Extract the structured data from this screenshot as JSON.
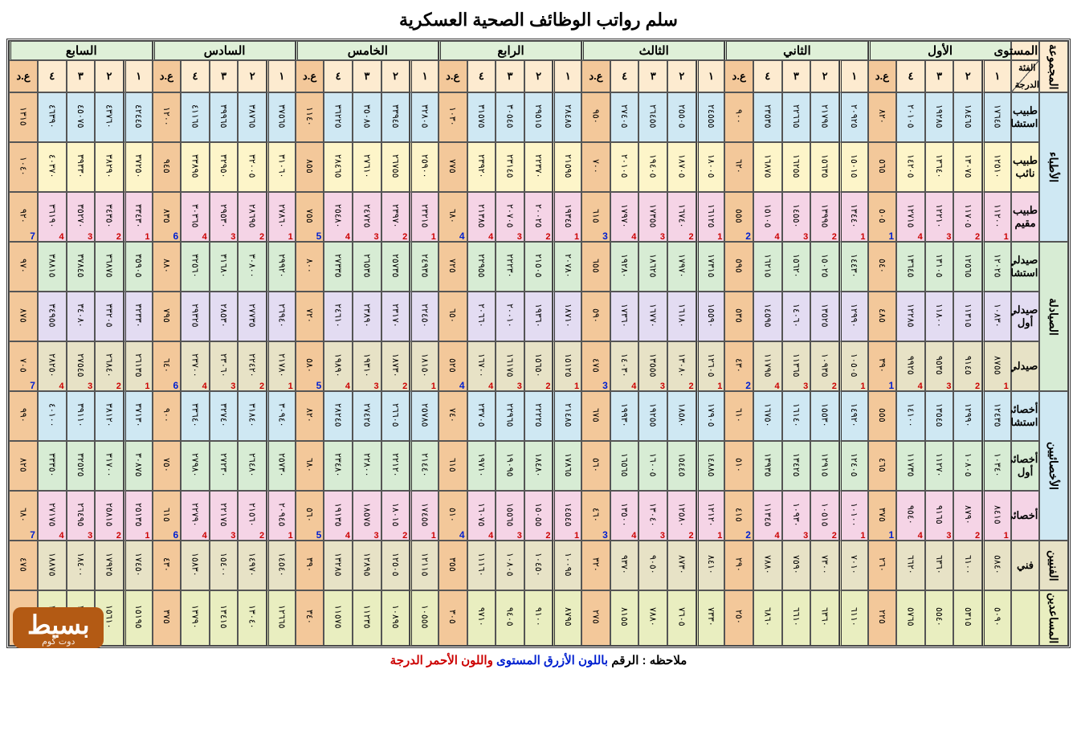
{
  "title": "سلم رواتب الوظائف الصحية العسكرية",
  "footer": {
    "prefix": "ملاحظه : الرقم ",
    "blue": "باللون الأزرق المستوى",
    "mid": " ",
    "red": "واللون الأحمر الدرجة"
  },
  "logo": {
    "big": "بسيط",
    "small": "دوت كوم"
  },
  "header": {
    "group_col": "المجموعة",
    "level_col": "المستوى",
    "diag_top": "الفئة",
    "diag_bot": "الدرجة",
    "levels": [
      "الأول",
      "الثاني",
      "الثالث",
      "الرابع",
      "الخامس",
      "السادس",
      "السابع"
    ],
    "degrees": [
      "١",
      "٢",
      "٣",
      "٤",
      "ع.د"
    ]
  },
  "colors": {
    "hdr_tan": "#fdebd0",
    "hdr_green": "#dff0d8",
    "lightblue": "#cfe8f3",
    "yellow": "#fdf5c9",
    "pink": "#f5d4e6",
    "green": "#d7ecd4",
    "lilac": "#e3dcf2",
    "khaki": "#e7e2c6",
    "olive": "#e9eec0",
    "orange_ad": "#f3c89a"
  },
  "groups": [
    {
      "name": "الأطباء",
      "bg": "lightblue",
      "rows": [
        {
          "label": "طبيب استشاري",
          "bg": "lightblue"
        },
        {
          "label": "طبيب نائب",
          "bg": "yellow"
        },
        {
          "label": "طبيب مقيم",
          "bg": "pink",
          "markers": true
        }
      ]
    },
    {
      "name": "الصيادلة",
      "bg": "green",
      "rows": [
        {
          "label": "صيدلي استشاري",
          "bg": "green"
        },
        {
          "label": "صيدلي أول",
          "bg": "lilac"
        },
        {
          "label": "صيدلي",
          "bg": "khaki",
          "markers": true
        }
      ]
    },
    {
      "name": "الأخصائيين",
      "bg": "lightblue",
      "rows": [
        {
          "label": "أخصائي استشاري",
          "bg": "lightblue"
        },
        {
          "label": "أخصائي أول",
          "bg": "green"
        },
        {
          "label": "أخصائي",
          "bg": "pink",
          "markers": true
        }
      ]
    },
    {
      "name": "الفنيين",
      "bg": "khaki",
      "rows": [
        {
          "label": "فني",
          "bg": "khaki"
        }
      ]
    },
    {
      "name": "المساعدين",
      "bg": "olive",
      "rows": [
        {
          "label": "",
          "bg": "olive"
        }
      ]
    }
  ],
  "values_note": "Values below are transcribed/estimated from the scan; vertical Arabic-Indic digits in original.",
  "data": {
    "الأطباء": {
      "طبيب استشاري": [
        [
          "١٧٦٤٥",
          "١٨٤٦٥",
          "١٩٢٨٥",
          "٢٠١٠٥",
          "٨٢٠"
        ],
        [
          "٢٠٩٢٥",
          "٢١٧٩٥",
          "٢٢٦٦٥",
          "٢٣٥٣٥",
          "٩٠٠"
        ],
        [
          "٢٤٥٥٥",
          "٢٥٥٠٥",
          "٢٦٤٥٥",
          "٢٧٤٠٥",
          "٩٥٠"
        ],
        [
          "٢٨٤٨٥",
          "٢٩٥١٥",
          "٣٠٥٤٥",
          "٣١٥٧٥",
          "١٠٣٠"
        ],
        [
          "٣٢٨٠٥",
          "٣٣٩٤٥",
          "٣٥٠٨٥",
          "٣٦٢٢٥",
          "١١٤٠"
        ],
        [
          "٣٧٥٦٥",
          "٣٨٧٦٥",
          "٣٩٩٦٥",
          "٤١١٦٥",
          "١٢٠٠"
        ],
        [
          "٤٢٤٤٥",
          "٤٣٧٦٠",
          "٤٥٠٧٥",
          "٤٦٣٩٠",
          "١٣١٥"
        ]
      ],
      "طبيب نائب": [
        [
          "١٢٥١٠",
          "١٣٠٧٥",
          "١٣٦٤٠",
          "١٤٢٠٥",
          "٥٦٥"
        ],
        [
          "١٥٠١٥",
          "١٥٦٣٥",
          "١٦٢٥٥",
          "١٦٨٧٥",
          "٦٢٠"
        ],
        [
          "١٨٠٠٥",
          "١٨٧٠٥",
          "١٩٤٠٥",
          "٢٠١٠٥",
          "٧٠٠"
        ],
        [
          "٢١٥٩٥",
          "٢٢٣٧٠",
          "٢٣١٤٥",
          "٢٣٩٢٠",
          "٧٧٥"
        ],
        [
          "٢٥٩٠٠",
          "٢٦٧٥٥",
          "٢٧٦١٠",
          "٢٨٤٦٥",
          "٨٥٥"
        ],
        [
          "٣١٠٦٠",
          "٣٢٠٠٥",
          "٣٢٩٥٠",
          "٣٣٨٩٥",
          "٩٤٥"
        ],
        [
          "٣٧٢٥٠",
          "٣٨٢٩٠",
          "٣٩٣٣٠",
          "٤٠٣٧٠",
          "١٠٤٠"
        ]
      ],
      "طبيب مقيم": [
        [
          "١١٢٠٠",
          "١١٧٠٥",
          "١٢٢١٠",
          "١٢٧١٥",
          "٥٠٥"
        ],
        [
          "١٣٤٤٠",
          "١٣٩٩٥",
          "١٤٥٥٠",
          "١٥١٠٥",
          "٥٥٥"
        ],
        [
          "١٦١٢٥",
          "١٦٧٤٠",
          "١٧٣٥٥",
          "١٧٩٧٠",
          "٦١٥"
        ],
        [
          "١٩٣٤٥",
          "٢٠٠٢٥",
          "٢٠٧٠٥",
          "٢١٣٨٥",
          "٦٨٠"
        ],
        [
          "٢٣٢١٥",
          "٢٣٩٧٠",
          "٢٤٧٢٥",
          "٢٥٤٨٠",
          "٧٥٥"
        ],
        [
          "٢٧٨٦٠",
          "٢٨٦٩٥",
          "٢٩٥٣٠",
          "٣٠٣٦٥",
          "٨٣٥"
        ],
        [
          "٣٣٤٣٠",
          "٣٤٣٥٠",
          "٣٥٢٧٠",
          "٣٦١٩٠",
          "٩٢٠"
        ]
      ]
    },
    "الصيادلة": {
      "صيدلي استشاري": [
        [
          "١٢٠٢٥",
          "١٢٥٦٥",
          "١٣١٠٥",
          "١٣٦٤٥",
          "٥٤٠"
        ],
        [
          "١٤٤٣٠",
          "١٥٠٢٥",
          "١٥٦٢٠",
          "١٦٢١٥",
          "٥٩٥"
        ],
        [
          "١٧٣١٥",
          "١٧٩٧٠",
          "١٨٦٢٥",
          "١٩٢٨٠",
          "٦٥٥"
        ],
        [
          "٢٠٧٨٠",
          "٢١٥٠٥",
          "٢٢٢٣٠",
          "٢٢٩٥٥",
          "٧٢٥"
        ],
        [
          "٢٤٩٣٥",
          "٢٥٧٣٥",
          "٢٦٥٣٥",
          "٢٧٣٣٥",
          "٨٠٠"
        ],
        [
          "٢٩٩٢٠",
          "٣٠٨٠٠",
          "٣١٦٨٠",
          "٣٢٥٦٠",
          "٨٨٠"
        ],
        [
          "٣٥٩٠٥",
          "٣٦٨٧٥",
          "٣٧٨٤٥",
          "٣٨٨١٥",
          "٩٧٠"
        ]
      ],
      "صيدلي أول": [
        [
          "١٠٨٣٠",
          "١١٣١٥",
          "١١٨٠٠",
          "١٢٢٨٥",
          "٤٨٥"
        ],
        [
          "١٢٩٩٠",
          "١٣٥٢٥",
          "١٤٠٦٠",
          "١٤٥٩٥",
          "٥٣٥"
        ],
        [
          "١٥٥٩٠",
          "١٦١٨٠",
          "١٦٧٧٠",
          "١٧٣٦٠",
          "٥٩٠"
        ],
        [
          "١٨٧١٠",
          "١٩٣٦٠",
          "٢٠٠١٠",
          "٢٠٦٦٠",
          "٦٥٠"
        ],
        [
          "٢٢٤٥٠",
          "٢٣١٧٠",
          "٢٣٨٩٠",
          "٢٤٦١٠",
          "٧٢٠"
        ],
        [
          "٢٦٩٤٠",
          "٢٧٧٣٥",
          "٢٨٥٣٠",
          "٢٩٣٢٥",
          "٧٩٥"
        ],
        [
          "٣٢٣٣٠",
          "٣٣٢٠٥",
          "٣٤٠٨٠",
          "٣٤٩٥٥",
          "٨٧٥"
        ]
      ],
      "صيدلي": [
        [
          "٨٧٥٥",
          "٩١٤٥",
          "٩٥٣٥",
          "٩٩٢٥",
          "٣٩٠"
        ],
        [
          "١٠٥٠٥",
          "١٠٩٣٥",
          "١١٣٦٥",
          "١١٧٩٥",
          "٤٣٠"
        ],
        [
          "١٢٦٠٥",
          "١٣٠٨٠",
          "١٣٥٥٥",
          "١٤٠٣٠",
          "٤٧٥"
        ],
        [
          "١٥١٢٥",
          "١٥٦٥٠",
          "١٦١٧٥",
          "١٦٧٠٠",
          "٥٢٥"
        ],
        [
          "١٨١٥٠",
          "١٨٧٣٠",
          "١٩٣١٠",
          "١٩٨٩٠",
          "٥٨٠"
        ],
        [
          "٢١٧٨٠",
          "٢٢٤٢٠",
          "٢٣٠٦٠",
          "٢٣٧٠٠",
          "٦٤٠"
        ],
        [
          "٢٦١٣٥",
          "٢٦٨٤٠",
          "٢٧٥٤٥",
          "٢٨٢٥٠",
          "٧٠٥"
        ]
      ]
    },
    "الأخصائيين": {
      "أخصائي استشاري": [
        [
          "١٢٤٣٥",
          "١٢٩٩٠",
          "١٣٥٤٥",
          "١٤١٠٠",
          "٥٥٥"
        ],
        [
          "١٤٩٢٠",
          "١٥٥٣٠",
          "١٦١٤٠",
          "١٦٧٥٠",
          "٦١٠"
        ],
        [
          "١٧٩٠٥",
          "١٨٥٨٠",
          "١٩٢٥٥",
          "١٩٩٣٠",
          "٦٧٥"
        ],
        [
          "٢١٤٨٥",
          "٢٢٢٢٥",
          "٢٢٩٦٥",
          "٢٣٧٠٥",
          "٧٤٠"
        ],
        [
          "٢٥٧٨٥",
          "٢٦٦٠٥",
          "٢٧٤٢٥",
          "٢٨٢٤٥",
          "٨٢٠"
        ],
        [
          "٣٠٩٤٠",
          "٣١٨٤٠",
          "٣٢٧٤٠",
          "٣٣٦٤٠",
          "٩٠٠"
        ],
        [
          "٣٧١٣٠",
          "٣٨١٢٠",
          "٣٩١١٠",
          "٤٠١٠٠",
          "٩٩٠"
        ]
      ],
      "أخصائي أول": [
        [
          "١٠٣٤٠",
          "١٠٨٠٥",
          "١١٢٧٠",
          "١١٧٣٥",
          "٤٦٥"
        ],
        [
          "١٢٤٠٥",
          "١٢٩١٥",
          "١٣٤٢٥",
          "١٣٩٣٥",
          "٥١٠"
        ],
        [
          "١٤٨٨٥",
          "١٥٤٤٥",
          "١٦٠٠٥",
          "١٦٥٦٥",
          "٥٦٠"
        ],
        [
          "١٧٨٦٥",
          "١٨٤٨٠",
          "١٩٠٩٥",
          "١٩٧١٠",
          "٦١٥"
        ],
        [
          "٢١٤٤٠",
          "٢٢١٢٠",
          "٢٢٨٠٠",
          "٢٣٤٨٠",
          "٦٨٠"
        ],
        [
          "٢٥٧٣٠",
          "٢٦٤٨٠",
          "٢٧٢٣٠",
          "٢٧٩٨٠",
          "٧٥٠"
        ],
        [
          "٣٠٨٧٥",
          "٣١٧٠٠",
          "٣٢٥٢٥",
          "٣٣٣٥٠",
          "٨٢٥"
        ]
      ],
      "أخصائي": [
        [
          "٨٤١٥",
          "٨٧٩٠",
          "٩١٦٥",
          "٩٥٤٠",
          "٣٧٥"
        ],
        [
          "١٠١٠٠",
          "١٠٥١٥",
          "١٠٩٣٠",
          "١١٣٤٥",
          "٤١٥"
        ],
        [
          "١٢١٢٠",
          "١٢٥٨٠",
          "١٣٠٤٠",
          "١٣٥٠٠",
          "٤٦٠"
        ],
        [
          "١٤٥٤٥",
          "١٥٠٥٥",
          "١٥٥٦٥",
          "١٦٠٧٥",
          "٥١٠"
        ],
        [
          "١٧٤٥٥",
          "١٨٠١٥",
          "١٨٥٧٥",
          "١٩١٣٥",
          "٥٦٠"
        ],
        [
          "٢٠٩٤٥",
          "٢١٥٦٠",
          "٢٢١٧٥",
          "٢٢٧٩٠",
          "٦١٥"
        ],
        [
          "٢٥١٣٥",
          "٢٥٨١٥",
          "٢٦٤٩٥",
          "٢٧١٧٥",
          "٦٨٠"
        ]
      ]
    },
    "الفنيين": {
      "فني": [
        [
          "٥٨٤٠",
          "٦١٠٠",
          "٦٣٦٠",
          "٦٦٢٠",
          "٢٦٠"
        ],
        [
          "٧٠١٠",
          "٧٣٠٠",
          "٧٥٩٠",
          "٧٨٨٠",
          "٢٩٠"
        ],
        [
          "٨٤١٠",
          "٨٧٣٠",
          "٩٠٥٠",
          "٩٣٧٠",
          "٣٢٠"
        ],
        [
          "١٠٠٩٥",
          "١٠٤٥٠",
          "١٠٨٠٥",
          "١١١٦٠",
          "٣٥٥"
        ],
        [
          "١٢١١٥",
          "١٢٥٠٥",
          "١٢٨٩٥",
          "١٣٢٨٥",
          "٣٩٠"
        ],
        [
          "١٤٥٤٠",
          "١٤٩٧٠",
          "١٥٤٠٠",
          "١٥٨٣٠",
          "٤٣٠"
        ],
        [
          "١٧٤٥٠",
          "١٧٩٢٥",
          "١٨٤٠٠",
          "١٨٨٧٥",
          "٤٧٥"
        ]
      ]
    },
    "المساعدين": {
      "": [
        [
          "٥٠٩٠",
          "٥٣١٥",
          "٥٥٤٠",
          "٥٧٦٥",
          "٢٢٥"
        ],
        [
          "٦١١٠",
          "٦٣٦٠",
          "٦٦١٠",
          "٦٨٦٠",
          "٢٥٠"
        ],
        [
          "٧٣٣٠",
          "٧٦٠٥",
          "٧٨٨٠",
          "٨١٥٥",
          "٢٧٥"
        ],
        [
          "٨٧٩٥",
          "٩١٠٠",
          "٩٤٠٥",
          "٩٧١٠",
          "٣٠٥"
        ],
        [
          "١٠٥٥٥",
          "١٠٨٩٥",
          "١١٢٣٥",
          "١١٥٧٥",
          "٣٤٠"
        ],
        [
          "١٢٦٦٥",
          "١٣٠٤٠",
          "١٣٤١٥",
          "١٣٧٩٠",
          "٣٧٥"
        ],
        [
          "١٥١٩٥",
          "١٥٦١٠",
          "١٦٠٢٥",
          "١٦٤٤٠",
          "٤١٥"
        ]
      ]
    }
  }
}
